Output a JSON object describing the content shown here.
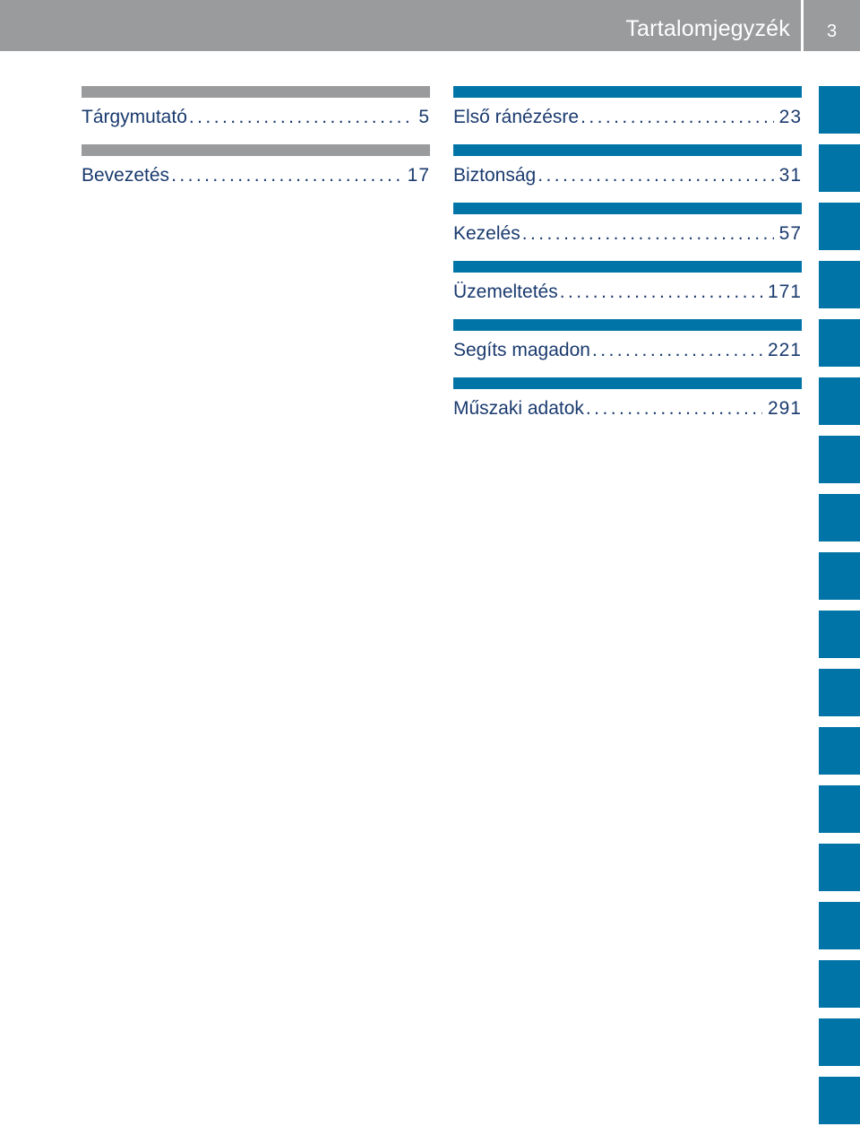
{
  "header": {
    "title": "Tartalomjegyzék",
    "page_number": "3"
  },
  "left_column": [
    {
      "title": "Tárgymutató",
      "page": "5",
      "bar_color": "#9a9b9d"
    },
    {
      "title": "Bevezetés",
      "page": "17",
      "bar_color": "#9a9b9d"
    }
  ],
  "right_column": [
    {
      "title": "Első ránézésre",
      "page": "23",
      "bar_color": "#0074a6"
    },
    {
      "title": "Biztonság",
      "page": "31",
      "bar_color": "#0074a6"
    },
    {
      "title": "Kezelés",
      "page": "57",
      "bar_color": "#0074a6"
    },
    {
      "title": "Üzemeltetés",
      "page": "171",
      "bar_color": "#0074a6"
    },
    {
      "title": "Segíts magadon",
      "page": "221",
      "bar_color": "#0074a6"
    },
    {
      "title": "Műszaki adatok",
      "page": "291",
      "bar_color": "#0074a6"
    }
  ],
  "side_tabs": {
    "count": 18,
    "color": "#0074a6"
  },
  "colors": {
    "header_bg": "#9a9b9d",
    "accent_blue": "#0074a6",
    "text": "#1a3a6e"
  }
}
